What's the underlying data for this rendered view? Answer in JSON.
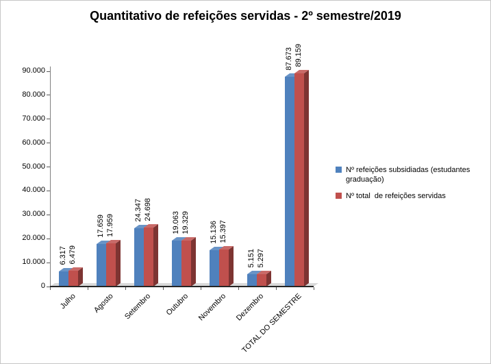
{
  "title": "Quantitativo de refeições servidas - 2º semestre/2019",
  "chart_data": {
    "type": "bar",
    "style_3d": true,
    "title": "Quantitativo de refeições servidas - 2º semestre/2019",
    "categories": [
      "Julho",
      "Agosto",
      "Setembro",
      "Outubro",
      "Novembro",
      "Dezembro",
      "TOTAL DO SEMESTRE"
    ],
    "series": [
      {
        "name": "Nº refeições subsidiadas (estudantes graduação)",
        "color": "#4F81BD",
        "values": [
          6317,
          17659,
          24347,
          19063,
          15136,
          5151,
          87673
        ]
      },
      {
        "name": "Nº total  de refeições servidas",
        "color": "#C0504D",
        "values": [
          6479,
          17959,
          24698,
          19329,
          15397,
          5297,
          89159
        ]
      }
    ],
    "xlabel": "",
    "ylabel": "",
    "ylim": [
      0,
      90000
    ],
    "ytick_step": 10000,
    "ytick_labels": [
      "0",
      "10.000",
      "20.000",
      "30.000",
      "40.000",
      "50.000",
      "60.000",
      "70.000",
      "80.000",
      "90.000"
    ],
    "grid": false,
    "legend_position": "right",
    "data_labels": "vertical above bars",
    "number_format": "#.##0"
  }
}
